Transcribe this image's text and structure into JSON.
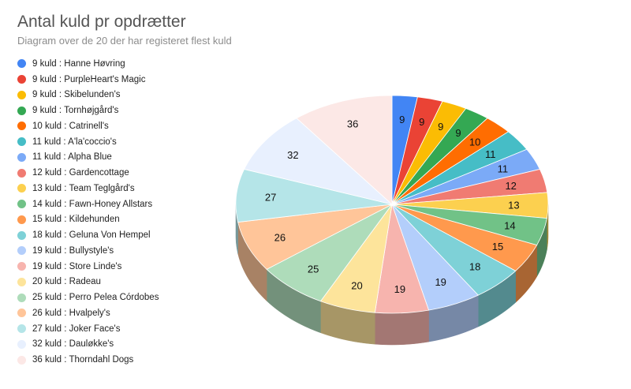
{
  "chart_data": {
    "type": "pie",
    "title": "Antal kuld pr opdrætter",
    "subtitle": "Diagram over de 20 der har registeret flest kuld",
    "slices": [
      {
        "name": "Hanne Høvring",
        "value": 9,
        "legend": "9 kuld : Hanne Høvring",
        "color": "#4285f4"
      },
      {
        "name": "PurpleHeart's Magic",
        "value": 9,
        "legend": "9 kuld : PurpleHeart's Magic",
        "color": "#ea4335"
      },
      {
        "name": "Skibelunden's",
        "value": 9,
        "legend": "9 kuld : Skibelunden's",
        "color": "#fbbc04"
      },
      {
        "name": "Tornhøjgård's",
        "value": 9,
        "legend": "9 kuld : Tornhøjgård's",
        "color": "#34a853"
      },
      {
        "name": "Catrinell's",
        "value": 10,
        "legend": "10 kuld : Catrinell's",
        "color": "#ff6d01"
      },
      {
        "name": "A'la'coccio's",
        "value": 11,
        "legend": "11 kuld : A'la'coccio's",
        "color": "#46bdc6"
      },
      {
        "name": "Alpha Blue",
        "value": 11,
        "legend": "11 kuld : Alpha Blue",
        "color": "#7baaf7"
      },
      {
        "name": "Gardencottage",
        "value": 12,
        "legend": "12 kuld : Gardencottage",
        "color": "#f07b72"
      },
      {
        "name": "Team Teglgård's",
        "value": 13,
        "legend": "13 kuld : Team Teglgård's",
        "color": "#fcd04f"
      },
      {
        "name": "Fawn-Honey Allstars",
        "value": 14,
        "legend": "14 kuld : Fawn-Honey Allstars",
        "color": "#71c287"
      },
      {
        "name": "Kildehunden",
        "value": 15,
        "legend": "15 kuld : Kildehunden",
        "color": "#ff994d"
      },
      {
        "name": "Geluna Von Hempel",
        "value": 18,
        "legend": "18 kuld : Geluna Von Hempel",
        "color": "#7ed1d7"
      },
      {
        "name": "Bullystyle's",
        "value": 19,
        "legend": "19 kuld : Bullystyle's",
        "color": "#b3cefb"
      },
      {
        "name": "Store Linde's",
        "value": 19,
        "legend": "19 kuld : Store Linde's",
        "color": "#f7b4ae"
      },
      {
        "name": "Radeau",
        "value": 20,
        "legend": "20 kuld : Radeau",
        "color": "#fde49b"
      },
      {
        "name": "Perro Pelea Córdobes",
        "value": 25,
        "legend": "25 kuld : Perro Pelea Córdobes",
        "color": "#aedcba"
      },
      {
        "name": "Hvalpely's",
        "value": 26,
        "legend": "26 kuld : Hvalpely's",
        "color": "#ffc599"
      },
      {
        "name": "Joker Face's",
        "value": 27,
        "legend": "27 kuld : Joker Face's",
        "color": "#b5e5e8"
      },
      {
        "name": "Dauløkke's",
        "value": 32,
        "legend": "32 kuld : Dauløkke's",
        "color": "#e8f0fe"
      },
      {
        "name": "Thorndahl Dogs",
        "value": 36,
        "legend": "36 kuld : Thorndahl Dogs",
        "color": "#fce8e6"
      }
    ],
    "legend_position": "left",
    "style": "3d-pie"
  }
}
